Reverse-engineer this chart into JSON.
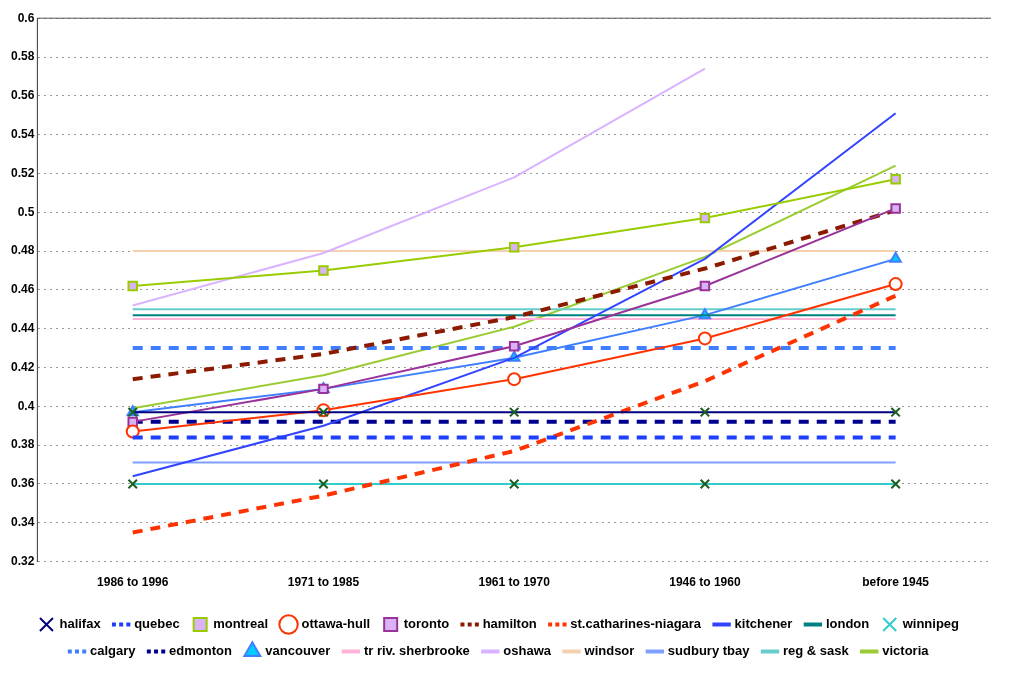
{
  "chart_data": {
    "type": "line",
    "categories": [
      "1986 to 1996",
      "1971 to 1985",
      "1961 to 1970",
      "1946 to 1960",
      "before 1945"
    ],
    "ylim": [
      0.32,
      0.6
    ],
    "yticks": [
      0.32,
      0.34,
      0.36,
      0.38,
      0.4,
      0.42,
      0.44,
      0.46,
      0.48,
      0.5,
      0.52,
      0.54,
      0.56,
      0.58,
      0.6
    ],
    "grid": "y",
    "legend": "bottom",
    "series": [
      {
        "name": "halifax",
        "color": "#000080",
        "marker": "cross",
        "line_style": "solid",
        "values": [
          0.397,
          0.397,
          0.397,
          0.397,
          0.397
        ]
      },
      {
        "name": "quebec",
        "color": "#1f3fff",
        "marker": "none",
        "line_style": "dashed",
        "values": [
          0.384,
          0.384,
          0.384,
          0.384,
          0.384
        ]
      },
      {
        "name": "montreal",
        "color": "#99cc00",
        "marker": "square",
        "line_style": "solid",
        "values": [
          0.462,
          0.47,
          0.482,
          0.497,
          0.517
        ]
      },
      {
        "name": "ottawa-hull",
        "color": "#ff3300",
        "marker": "circle",
        "line_style": "solid",
        "values": [
          0.387,
          0.398,
          0.414,
          0.435,
          0.463
        ]
      },
      {
        "name": "toronto",
        "color": "#993399",
        "marker": "square",
        "line_style": "solid",
        "values": [
          0.392,
          0.409,
          0.431,
          0.462,
          0.502
        ]
      },
      {
        "name": "hamilton",
        "color": "#8b1a00",
        "marker": "none",
        "line_style": "dashed",
        "values": [
          0.414,
          0.427,
          0.446,
          0.471,
          0.501
        ]
      },
      {
        "name": "st.catharines-niagara",
        "color": "#ff3300",
        "marker": "none",
        "line_style": "dashed",
        "values": [
          0.335,
          0.354,
          0.377,
          0.413,
          0.457
        ]
      },
      {
        "name": "kitchener",
        "color": "#3344ff",
        "marker": "none",
        "line_style": "solid",
        "values": [
          0.364,
          0.39,
          0.425,
          0.476,
          0.551
        ]
      },
      {
        "name": "london",
        "color": "#008080",
        "marker": "none",
        "line_style": "solid",
        "values": [
          0.447,
          0.447,
          0.447,
          0.447,
          0.447
        ]
      },
      {
        "name": "winnipeg",
        "color": "#33cccc",
        "marker": "cross",
        "line_style": "solid",
        "values": [
          0.36,
          0.36,
          0.36,
          0.36,
          0.36
        ]
      },
      {
        "name": "calgary",
        "color": "#3f7fff",
        "marker": "none",
        "line_style": "dashed",
        "values": [
          0.43,
          0.43,
          0.43,
          0.43,
          0.43
        ]
      },
      {
        "name": "edmonton",
        "color": "#000090",
        "marker": "none",
        "line_style": "dashed",
        "values": [
          0.392,
          0.392,
          0.392,
          0.392,
          0.392
        ]
      },
      {
        "name": "vancouver",
        "color": "#3f7fff",
        "marker": "triangle",
        "line_style": "solid",
        "values": [
          0.397,
          0.409,
          0.425,
          0.447,
          0.476
        ]
      },
      {
        "name": "tr riv. sherbrooke",
        "color": "#ffb3d9",
        "marker": "none",
        "line_style": "solid",
        "values": [
          0.445,
          0.445,
          0.445,
          0.445,
          0.445
        ]
      },
      {
        "name": "oshawa",
        "color": "#d9b3ff",
        "marker": "none",
        "line_style": "solid",
        "values": [
          0.452,
          0.479,
          0.518,
          0.574,
          null
        ]
      },
      {
        "name": "windsor",
        "color": "#f5d0b0",
        "marker": "none",
        "line_style": "solid",
        "values": [
          0.48,
          0.48,
          0.48,
          0.48,
          0.48
        ]
      },
      {
        "name": "sudbury tbay",
        "color": "#7fa0ff",
        "marker": "none",
        "line_style": "solid",
        "values": [
          0.371,
          0.371,
          0.371,
          0.371,
          0.371
        ]
      },
      {
        "name": "reg & sask",
        "color": "#66cccc",
        "marker": "none",
        "line_style": "solid",
        "values": [
          0.45,
          0.45,
          0.45,
          0.45,
          0.45
        ]
      },
      {
        "name": "victoria",
        "color": "#99cc33",
        "marker": "none",
        "line_style": "solid",
        "values": [
          0.399,
          0.416,
          0.441,
          0.477,
          0.524
        ]
      }
    ]
  }
}
